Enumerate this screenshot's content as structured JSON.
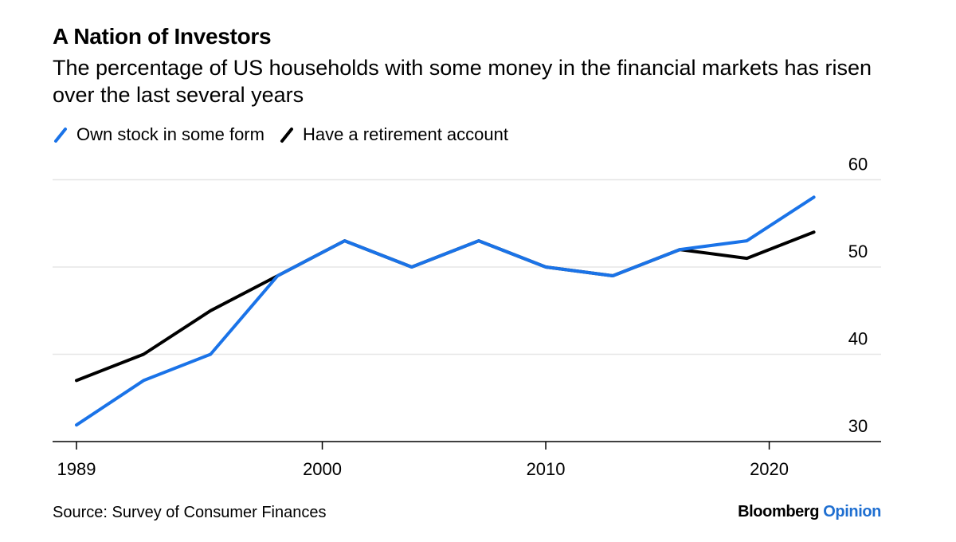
{
  "header": {
    "title": "A Nation of Investors",
    "subtitle": "The percentage of US households with some money in the financial markets has risen over the last several years"
  },
  "legend": [
    {
      "label": "Own stock in some form",
      "color": "#1a73e8"
    },
    {
      "label": "Have a retirement account",
      "color": "#000000"
    }
  ],
  "footer": {
    "source": "Source: Survey of Consumer Finances",
    "brand_primary": "Bloomberg",
    "brand_secondary": "Opinion"
  },
  "chart_data": {
    "type": "line",
    "title": "A Nation of Investors",
    "subtitle": "The percentage of US households with some money in the financial markets has risen over the last several years",
    "xlabel": "",
    "ylabel": "",
    "xlim": [
      1989,
      2022
    ],
    "ylim": [
      30,
      60
    ],
    "x_ticks": [
      1989,
      2000,
      2010,
      2020
    ],
    "y_ticks": [
      30,
      40,
      50,
      60
    ],
    "y_axis_position": "right",
    "grid": "horizontal",
    "legend_position": "top-left",
    "series": [
      {
        "name": "Own stock in some form",
        "color": "#1a73e8",
        "x": [
          1989,
          1992,
          1995,
          1998,
          2001,
          2004,
          2007,
          2010,
          2013,
          2016,
          2019,
          2022
        ],
        "values": [
          31.9,
          37.0,
          40.0,
          49.0,
          53.0,
          50.0,
          53.0,
          50.0,
          49.0,
          52.0,
          53.0,
          58.0
        ]
      },
      {
        "name": "Have a retirement account",
        "color": "#000000",
        "x": [
          1989,
          1992,
          1995,
          1998,
          2001,
          2004,
          2007,
          2010,
          2013,
          2016,
          2019,
          2022
        ],
        "values": [
          37.0,
          40.0,
          45.0,
          49.0,
          53.0,
          50.0,
          53.0,
          50.0,
          49.0,
          52.0,
          51.0,
          54.0
        ]
      }
    ]
  }
}
